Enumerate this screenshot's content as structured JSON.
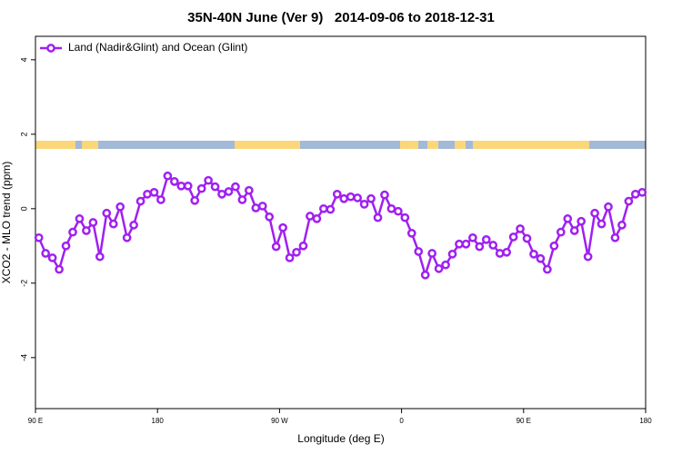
{
  "chart_data": {
    "type": "line",
    "title": "35N-40N June (Ver 9)   2014-09-06 to 2018-12-31",
    "x_label": "Longitude (deg E)",
    "y_label": "XCO2 - MLO trend (ppm)",
    "x": [
      92.5,
      97.5,
      102.5,
      107.5,
      112.5,
      117.5,
      122.5,
      127.5,
      132.5,
      137.5,
      142.5,
      147.5,
      152.5,
      157.5,
      162.5,
      167.5,
      172.5,
      177.5,
      182.5,
      187.5,
      192.5,
      197.5,
      202.5,
      207.5,
      212.5,
      217.5,
      222.5,
      227.5,
      232.5,
      237.5,
      242.5,
      247.5,
      252.5,
      257.5,
      262.5,
      267.5,
      272.5,
      277.5,
      282.5,
      287.5,
      292.5,
      297.5,
      302.5,
      307.5,
      312.5,
      317.5,
      322.5,
      327.5,
      332.5,
      337.5,
      342.5,
      347.5,
      352.5,
      357.5,
      362.5,
      367.5,
      372.5,
      377.5,
      382.5,
      387.5,
      392.5,
      397.5,
      402.5,
      407.5,
      412.5,
      417.5,
      422.5,
      427.5,
      432.5,
      437.5,
      442.5,
      447.5,
      452.5,
      457.5,
      462.5,
      467.5,
      472.5,
      477.5,
      482.5,
      487.5,
      492.5,
      497.5,
      502.5,
      507.5,
      512.5,
      517.5,
      522.5,
      527.5,
      532.5,
      537.5
    ],
    "series": [
      {
        "name": "Land (Nadir&Glint) and Ocean (Glint)",
        "color": "#a020f0",
        "values": [
          -0.78,
          -1.2,
          -1.32,
          -1.63,
          -1.0,
          -0.63,
          -0.27,
          -0.59,
          -0.37,
          -1.29,
          -0.12,
          -0.41,
          0.05,
          -0.78,
          -0.44,
          0.2,
          0.39,
          0.44,
          0.24,
          0.88,
          0.73,
          0.61,
          0.61,
          0.22,
          0.54,
          0.76,
          0.59,
          0.39,
          0.46,
          0.59,
          0.24,
          0.49,
          0.02,
          0.07,
          -0.22,
          -1.02,
          -0.51,
          -1.32,
          -1.17,
          -1.0,
          -0.2,
          -0.27,
          0,
          -0.02,
          0.39,
          0.27,
          0.32,
          0.29,
          0.12,
          0.27,
          -0.24,
          0.37,
          0,
          -0.07,
          -0.24,
          -0.66,
          -1.15,
          -1.78,
          -1.2,
          -1.61,
          -1.51,
          -1.22,
          -0.95,
          -0.95,
          -0.78,
          -1.02,
          -0.83,
          -0.98,
          -1.2,
          -1.17,
          -0.76,
          -0.54,
          -0.8,
          -1.22,
          -1.34,
          -1.63,
          -1.0,
          -0.63,
          -0.27,
          -0.59,
          -0.34,
          -1.29,
          -0.12,
          -0.41,
          0.05,
          -0.78,
          -0.44,
          0.2,
          0.39,
          0.44
        ]
      }
    ],
    "xlim": [
      90,
      540
    ],
    "xticks": [
      {
        "value": 90,
        "label": "90 E"
      },
      180,
      {
        "value": 270,
        "label": "90 W"
      },
      {
        "value": 360,
        "label": "0"
      },
      {
        "value": 450,
        "label": "90 E"
      },
      {
        "value": 540,
        "label": "180"
      }
    ],
    "ylim": [
      -5.37,
      4.63
    ],
    "yticks": [
      -4,
      -2,
      0,
      2,
      4
    ],
    "legend": "top-left"
  }
}
